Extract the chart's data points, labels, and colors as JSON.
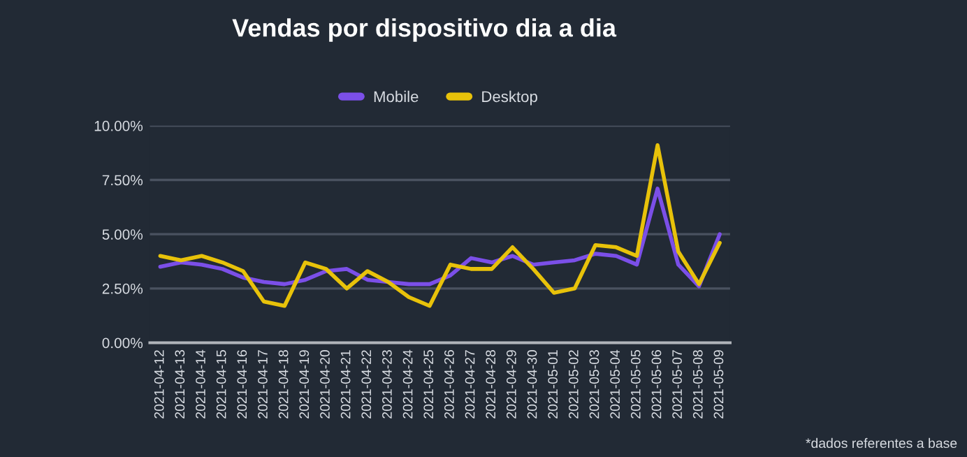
{
  "chart_data": {
    "type": "line",
    "title": "Vendas por dispositivo dia a dia",
    "categories": [
      "2021-04-12",
      "2021-04-13",
      "2021-04-14",
      "2021-04-15",
      "2021-04-16",
      "2021-04-17",
      "2021-04-18",
      "2021-04-19",
      "2021-04-20",
      "2021-04-21",
      "2021-04-22",
      "2021-04-23",
      "2021-04-24",
      "2021-04-25",
      "2021-04-26",
      "2021-04-27",
      "2021-04-28",
      "2021-04-29",
      "2021-04-30",
      "2021-05-01",
      "2021-05-02",
      "2021-05-03",
      "2021-05-04",
      "2021-05-05",
      "2021-05-06",
      "2021-05-07",
      "2021-05-08",
      "2021-05-09"
    ],
    "series": [
      {
        "name": "Mobile",
        "color": "#7b4fe8",
        "values": [
          3.5,
          3.7,
          3.6,
          3.4,
          3.0,
          2.8,
          2.7,
          2.9,
          3.3,
          3.4,
          2.9,
          2.8,
          2.7,
          2.7,
          3.1,
          3.9,
          3.7,
          4.0,
          3.6,
          3.7,
          3.8,
          4.1,
          4.0,
          3.6,
          7.1,
          3.6,
          2.6,
          5.0
        ]
      },
      {
        "name": "Desktop",
        "color": "#e8c20a",
        "values": [
          4.0,
          3.8,
          4.0,
          3.7,
          3.3,
          1.9,
          1.7,
          3.7,
          3.4,
          2.5,
          3.3,
          2.8,
          2.1,
          1.7,
          3.6,
          3.4,
          3.4,
          4.4,
          3.4,
          2.3,
          2.5,
          4.5,
          4.4,
          4.0,
          9.1,
          4.2,
          2.7,
          4.6
        ]
      }
    ],
    "ylim": [
      0,
      10
    ],
    "yticks": [
      {
        "value": 0,
        "label": "0.00%"
      },
      {
        "value": 2.5,
        "label": "2.50%"
      },
      {
        "value": 5,
        "label": "5.00%"
      },
      {
        "value": 7.5,
        "label": "7.50%"
      },
      {
        "value": 10,
        "label": "10.00%"
      }
    ],
    "grid": "y",
    "legend": "top",
    "marker": "none",
    "line_style": "solid",
    "annotations": [
      "*dados referentes a base"
    ]
  }
}
